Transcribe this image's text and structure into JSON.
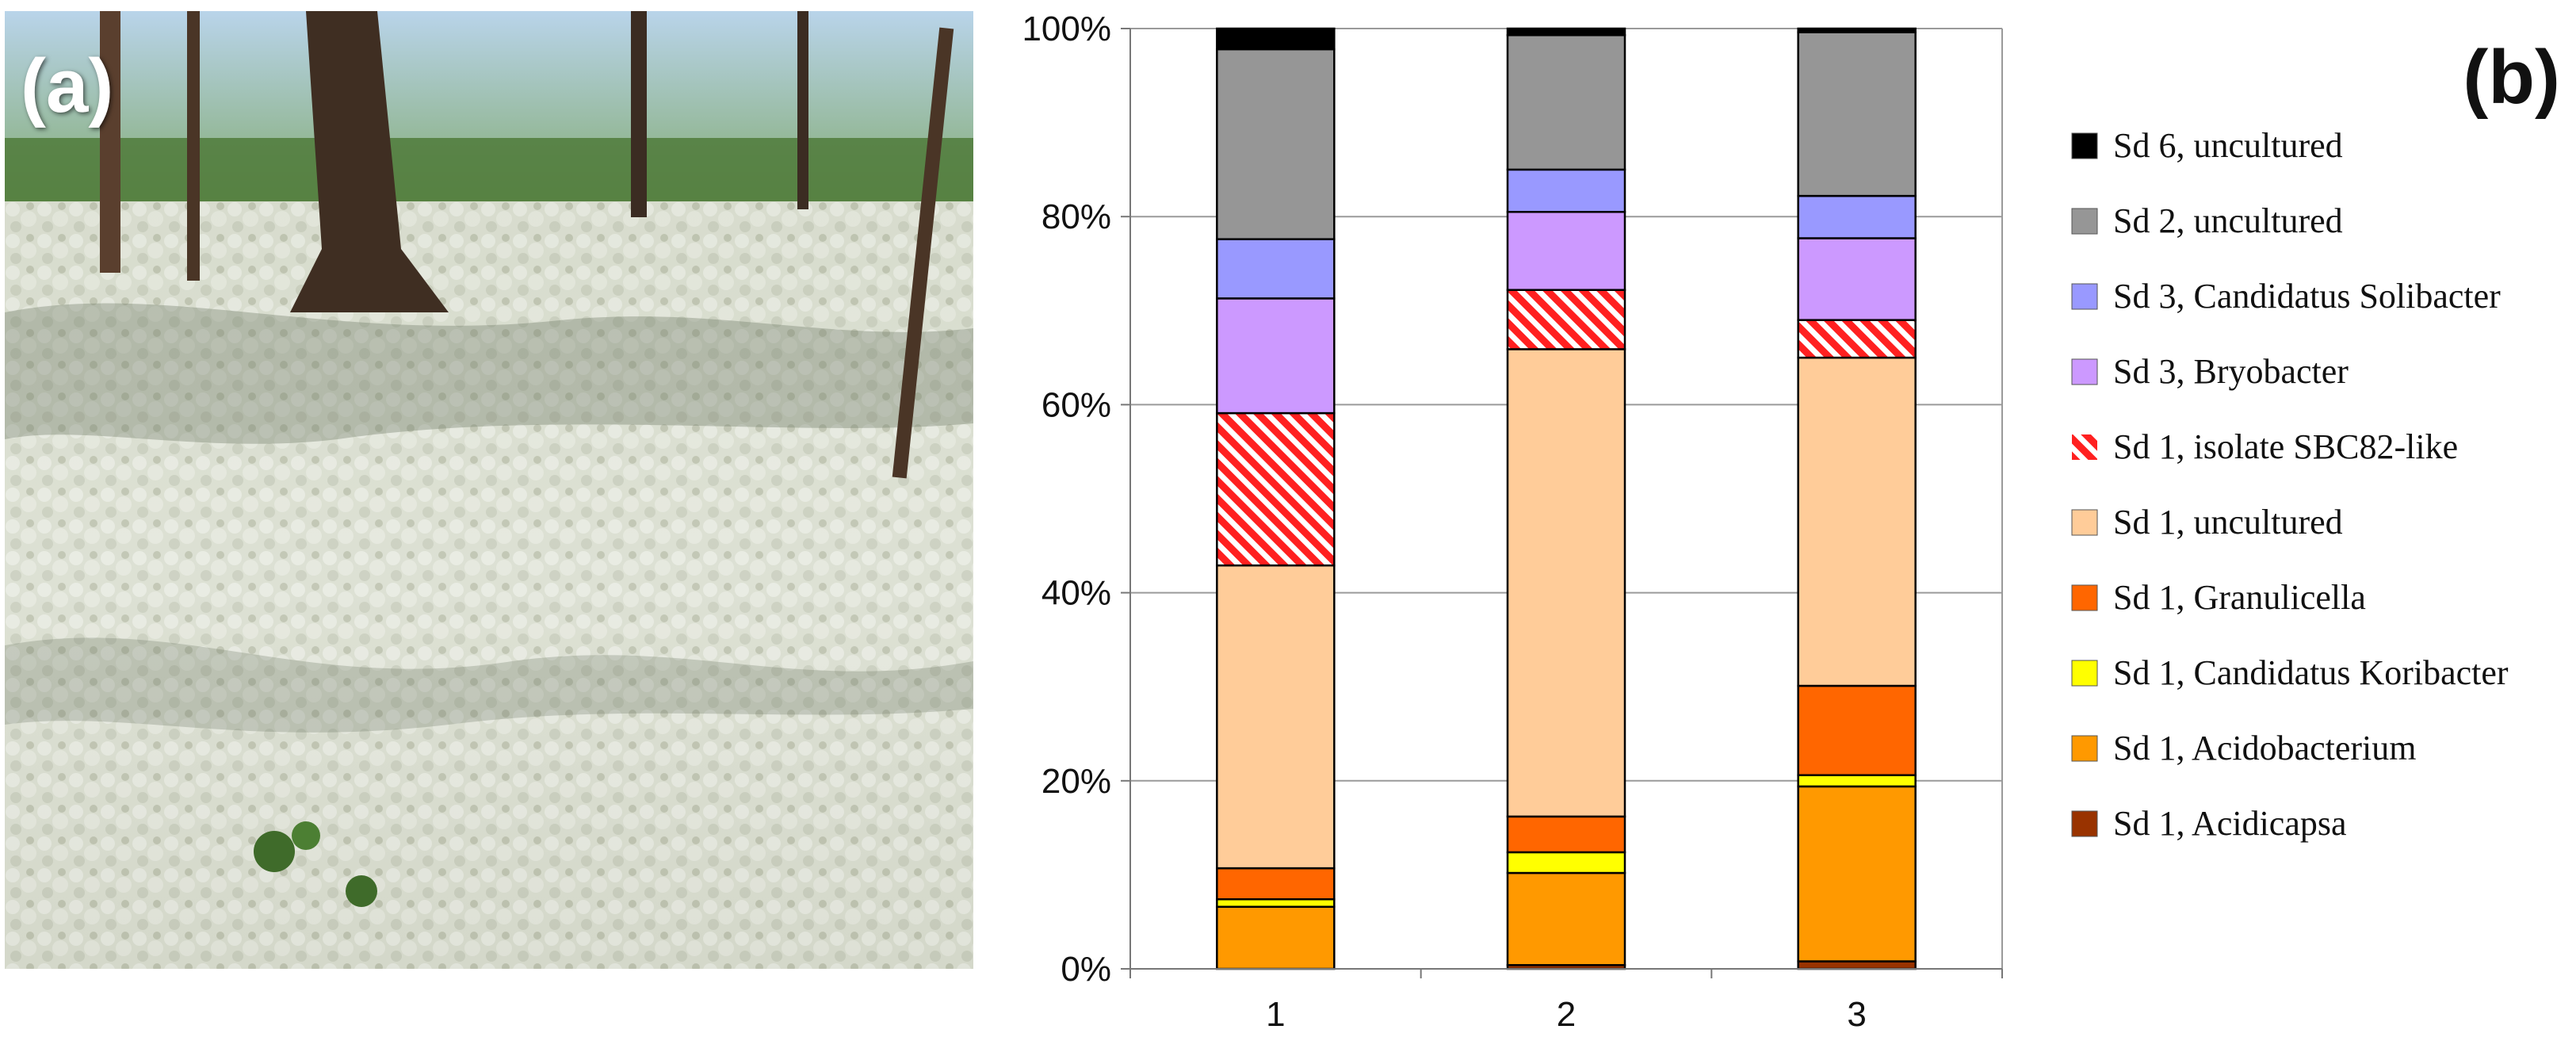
{
  "panel_a": {
    "label": "(a)",
    "scene": "reindeer-lichen-pine-forest-photo"
  },
  "panel_b": {
    "label": "(b)"
  },
  "chart_data": {
    "type": "bar",
    "stacked": true,
    "percent_scale": true,
    "categories": [
      "1",
      "2",
      "3"
    ],
    "ylim": [
      0,
      100
    ],
    "yticks": [
      "0%",
      "20%",
      "40%",
      "60%",
      "80%",
      "100%"
    ],
    "grid": true,
    "legend_position": "right",
    "series": [
      {
        "name": "Sd 1, Acidicapsa",
        "values": [
          0.0,
          0.4,
          0.8
        ],
        "color": "#993300",
        "pattern": "solid"
      },
      {
        "name": "Sd 1, Acidobacterium",
        "values": [
          6.6,
          9.8,
          18.6
        ],
        "color": "#FF9900",
        "pattern": "solid"
      },
      {
        "name": "Sd 1, Candidatus Koribacter",
        "values": [
          0.8,
          2.2,
          1.2
        ],
        "color": "#FFFF00",
        "pattern": "solid"
      },
      {
        "name": "Sd 1, Granulicella",
        "values": [
          3.3,
          3.8,
          9.5
        ],
        "color": "#FF6600",
        "pattern": "solid"
      },
      {
        "name": "Sd 1, uncultured",
        "values": [
          32.2,
          49.7,
          34.9
        ],
        "color": "#FFCC99",
        "pattern": "solid"
      },
      {
        "name": "Sd 1, isolate SBC82-like",
        "values": [
          16.2,
          6.3,
          4.0
        ],
        "color": "#FF2020",
        "pattern": "hatch"
      },
      {
        "name": "Sd 3, Bryobacter",
        "values": [
          12.2,
          8.3,
          8.7
        ],
        "color": "#CC99FF",
        "pattern": "solid"
      },
      {
        "name": "Sd 3, Candidatus Solibacter",
        "values": [
          6.3,
          4.5,
          4.5
        ],
        "color": "#9999FF",
        "pattern": "solid"
      },
      {
        "name": "Sd 2, uncultured",
        "values": [
          20.2,
          14.3,
          17.4
        ],
        "color": "#969696",
        "pattern": "solid"
      },
      {
        "name": "Sd 6, uncultured",
        "values": [
          2.2,
          0.7,
          0.4
        ],
        "color": "#000000",
        "pattern": "solid"
      }
    ]
  }
}
